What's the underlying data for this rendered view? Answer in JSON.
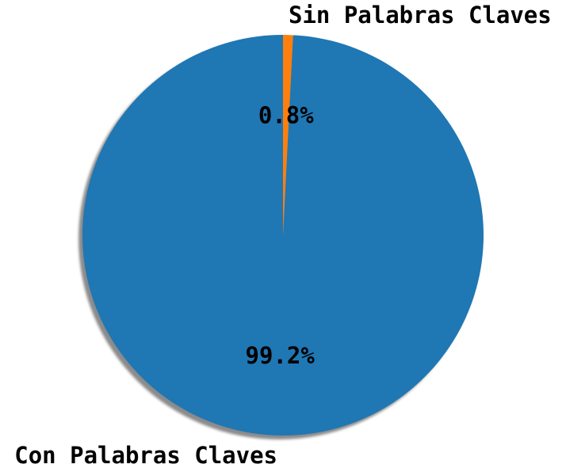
{
  "chart_data": {
    "type": "pie",
    "title": "",
    "start_angle_deg": 90,
    "counterclockwise": true,
    "shadow": true,
    "slices": [
      {
        "label": "Con Palabras Claves",
        "value": 99.2,
        "pct_label": "99.2%",
        "color": "#1f77b4"
      },
      {
        "label": "Sin Palabras Claves",
        "value": 0.8,
        "pct_label": "0.8%",
        "color": "#ff7f0e"
      }
    ]
  }
}
